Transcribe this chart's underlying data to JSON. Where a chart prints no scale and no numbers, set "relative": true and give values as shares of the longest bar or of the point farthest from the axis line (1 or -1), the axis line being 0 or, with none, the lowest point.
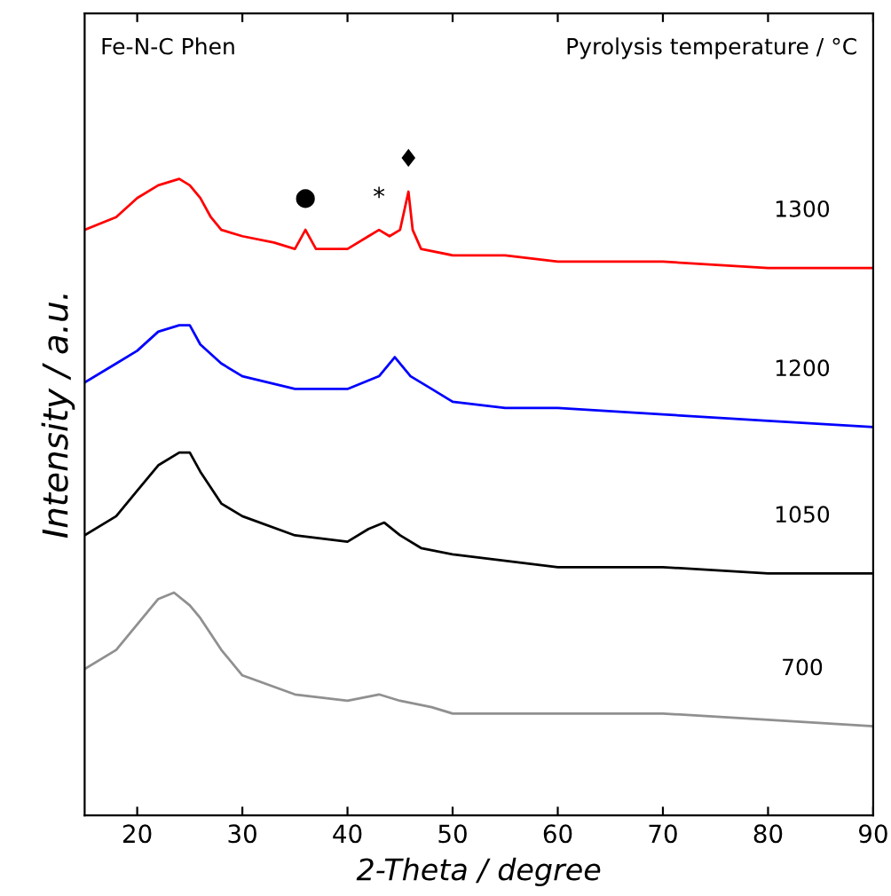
{
  "chart_data": {
    "type": "line",
    "relative": true,
    "xlabel": "2-Theta / degree",
    "ylabel": "Intensity / a.u.",
    "xlim": [
      15,
      90
    ],
    "xticks": [
      20,
      30,
      40,
      50,
      60,
      70,
      80,
      90
    ],
    "tick_labels": "x",
    "grid": false,
    "marker": "none",
    "line_style": "solid",
    "annotations": [
      "Fe-N-C Phen",
      "Pyrolysis temperature / °C",
      {
        "text": "●",
        "x": 36,
        "y": 0.92
      },
      {
        "text": "*",
        "x": 43,
        "y": 0.92
      },
      {
        "text": "♦",
        "x": 45.8,
        "y": 0.98
      }
    ],
    "series": [
      {
        "name": "1300",
        "color": "#ff0000",
        "x": [
          15,
          18,
          20,
          22,
          24,
          25,
          26,
          27,
          28,
          30,
          33,
          35,
          36,
          37,
          40,
          42,
          43,
          44,
          45,
          45.8,
          46.2,
          47,
          50,
          55,
          60,
          70,
          80,
          90
        ],
        "values": [
          0.92,
          0.94,
          0.97,
          0.99,
          1.0,
          0.99,
          0.97,
          0.94,
          0.92,
          0.91,
          0.9,
          0.89,
          0.92,
          0.89,
          0.89,
          0.91,
          0.92,
          0.91,
          0.92,
          0.98,
          0.92,
          0.89,
          0.88,
          0.88,
          0.87,
          0.87,
          0.86,
          0.86
        ]
      },
      {
        "name": "1200",
        "color": "#0000ff",
        "x": [
          15,
          18,
          20,
          22,
          24,
          25,
          26,
          28,
          30,
          35,
          40,
          43,
          44.5,
          46,
          48,
          50,
          55,
          60,
          70,
          80,
          90
        ],
        "values": [
          0.68,
          0.71,
          0.73,
          0.76,
          0.77,
          0.77,
          0.74,
          0.71,
          0.69,
          0.67,
          0.67,
          0.69,
          0.72,
          0.69,
          0.67,
          0.65,
          0.64,
          0.64,
          0.63,
          0.62,
          0.61
        ]
      },
      {
        "name": "1050",
        "color": "#000000",
        "x": [
          15,
          18,
          20,
          22,
          24,
          25,
          26,
          28,
          30,
          35,
          40,
          42,
          43.5,
          45,
          47,
          50,
          60,
          70,
          80,
          90
        ],
        "values": [
          0.44,
          0.47,
          0.51,
          0.55,
          0.57,
          0.57,
          0.54,
          0.49,
          0.47,
          0.44,
          0.43,
          0.45,
          0.46,
          0.44,
          0.42,
          0.41,
          0.39,
          0.39,
          0.38,
          0.38
        ]
      },
      {
        "name": "700",
        "color": "#909090",
        "x": [
          15,
          18,
          20,
          22,
          23.5,
          25,
          26,
          28,
          30,
          35,
          40,
          43,
          45,
          48,
          50,
          60,
          70,
          80,
          90
        ],
        "values": [
          0.23,
          0.26,
          0.3,
          0.34,
          0.35,
          0.33,
          0.31,
          0.26,
          0.22,
          0.19,
          0.18,
          0.19,
          0.18,
          0.17,
          0.16,
          0.16,
          0.16,
          0.15,
          0.14
        ]
      }
    ]
  }
}
